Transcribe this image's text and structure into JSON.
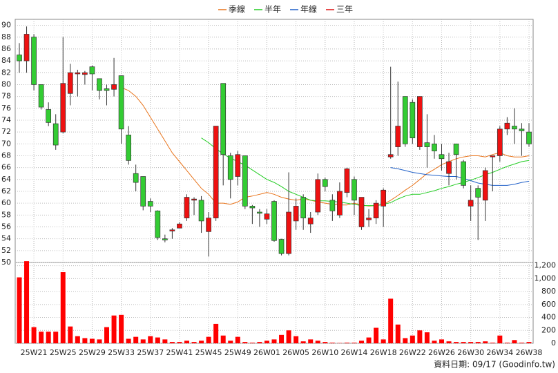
{
  "chart_data": {
    "type": "candlestick",
    "categories": [
      null,
      null,
      "25W21",
      null,
      null,
      null,
      "25W25",
      null,
      null,
      null,
      "25W29",
      null,
      null,
      null,
      "25W33",
      null,
      null,
      null,
      "25W37",
      null,
      null,
      null,
      "25W41",
      null,
      null,
      null,
      "25W45",
      null,
      null,
      null,
      "25W49",
      null,
      null,
      null,
      "26W01",
      null,
      null,
      null,
      "26W05",
      null,
      null,
      null,
      "26W10",
      null,
      null,
      null,
      "26W14",
      null,
      null,
      null,
      "26W18",
      null,
      null,
      null,
      "26W22",
      null,
      null,
      null,
      "26W26",
      null,
      null,
      null,
      "26W30",
      null,
      null,
      null,
      "26W34",
      null,
      null,
      null,
      "26W38"
    ],
    "open": [
      85,
      84,
      88,
      80,
      75.8,
      73.4,
      72,
      78.5,
      81.8,
      81.7,
      83,
      81,
      79.3,
      79.2,
      81.5,
      71.5,
      65,
      64.5,
      60.3,
      58.7,
      54,
      55.3,
      55.8,
      57.5,
      60.5,
      60.5,
      55.2,
      57.5,
      80.2,
      68,
      64.5,
      68,
      59.5,
      58.5,
      57.3,
      60.3,
      53.9,
      51.5,
      57,
      61,
      56.5,
      58.5,
      64,
      60.5,
      58,
      61.8,
      64,
      56,
      57.2,
      57.5,
      59.5,
      67.8,
      69.5,
      78,
      77,
      69.5,
      70.2,
      70,
      68.2,
      65,
      70,
      67,
      59.5,
      62.5,
      60.5,
      67.8,
      68,
      72.5,
      73,
      72.5,
      72
    ],
    "high": [
      87,
      89.8,
      88.5,
      80,
      77,
      75,
      88,
      83.5,
      82.5,
      82.3,
      83.2,
      81,
      80,
      84.5,
      81.5,
      73,
      66.5,
      64.5,
      60.8,
      58.8,
      54.7,
      55.8,
      56.8,
      61.5,
      61,
      61.2,
      58.5,
      73,
      80.2,
      68.5,
      68.8,
      68,
      59.7,
      59,
      59,
      60.5,
      54,
      65.2,
      60.8,
      61.5,
      58.5,
      65,
      64.3,
      61.5,
      63.5,
      66,
      64.5,
      61,
      59,
      60.5,
      62.5,
      83,
      80.5,
      78,
      77.5,
      78,
      75,
      71.5,
      70,
      68.5,
      70,
      67.3,
      63,
      63,
      66,
      68,
      73,
      74.5,
      76,
      73.5,
      73.5
    ],
    "low": [
      82,
      82,
      79,
      75.8,
      73,
      69,
      71.8,
      76.5,
      78,
      80,
      79,
      77.5,
      76.5,
      78,
      70,
      66.5,
      62,
      58.8,
      58.5,
      53.8,
      53.4,
      54,
      55.8,
      57,
      58,
      55,
      51,
      57,
      63,
      60.8,
      63,
      59,
      56.5,
      56,
      56.5,
      53.5,
      51.2,
      51.2,
      55.5,
      55.5,
      55,
      58,
      62,
      57,
      57.5,
      61,
      58,
      55.5,
      56,
      56.5,
      56,
      67.5,
      68,
      69.5,
      70,
      69,
      66,
      67.5,
      65.5,
      63,
      64,
      62.5,
      57,
      53.8,
      57,
      62,
      67,
      71.5,
      70,
      68,
      69.5
    ],
    "close": [
      84,
      88.5,
      80,
      76.2,
      73.6,
      69.8,
      80.2,
      82,
      82,
      82,
      81.8,
      79,
      79,
      80,
      72.5,
      67.2,
      63.5,
      59.5,
      59.5,
      54.2,
      53.8,
      55.5,
      56.5,
      61,
      60.7,
      57,
      57.5,
      73,
      68.2,
      64,
      68.2,
      59.5,
      59.2,
      58.3,
      58.2,
      53.7,
      51.5,
      58.5,
      59.5,
      57.5,
      57.5,
      64,
      62.8,
      58.7,
      62,
      65.8,
      60.5,
      61,
      57.5,
      60,
      62.2,
      68.2,
      73,
      70,
      71,
      78,
      69.5,
      68.8,
      67.5,
      67,
      68.2,
      63,
      60.5,
      61,
      65.5,
      68,
      72.5,
      73.5,
      72.5,
      72.2,
      70
    ],
    "up_color": "#ee1111",
    "down_color": "#33cc33",
    "series": [
      {
        "name": "季線",
        "color": "#e8731a",
        "values": [
          null,
          null,
          null,
          null,
          null,
          null,
          null,
          null,
          null,
          null,
          null,
          null,
          null,
          null,
          79.5,
          79,
          78,
          76.5,
          74.5,
          72.5,
          70.5,
          68.5,
          67,
          65.5,
          64,
          62.5,
          61.5,
          60,
          60,
          59.8,
          60.2,
          61,
          61.2,
          61.5,
          61.8,
          61.5,
          61,
          60.7,
          60.5,
          60.7,
          60.5,
          60.2,
          60,
          59.8,
          59.7,
          59.7,
          60,
          59.7,
          59.5,
          59.6,
          59.8,
          60.5,
          61.3,
          62.2,
          63,
          64,
          65,
          65.7,
          66.5,
          67,
          67.5,
          67.8,
          68,
          68,
          67.8,
          68.2,
          68.5,
          68,
          67.8,
          67.8,
          68
        ]
      },
      {
        "name": "半年",
        "color": "#22cc22",
        "values": [
          null,
          null,
          null,
          null,
          null,
          null,
          null,
          null,
          null,
          null,
          null,
          null,
          null,
          null,
          null,
          null,
          null,
          null,
          null,
          null,
          null,
          null,
          null,
          null,
          null,
          71,
          70.2,
          69.2,
          68.3,
          67.6,
          67,
          66.4,
          65.6,
          64.8,
          64,
          63.5,
          62.8,
          62,
          61.5,
          61,
          60.5,
          60.4,
          60.4,
          60.3,
          60.2,
          60,
          59.8,
          59.6,
          59.6,
          59.6,
          59.8,
          60.1,
          60.7,
          61.2,
          61.5,
          61.5,
          61.8,
          62.1,
          62.5,
          62.8,
          63.2,
          63.5,
          63.9,
          64.3,
          64.8,
          65.2,
          65.7,
          66.2,
          66.6,
          67,
          67.2
        ]
      },
      {
        "name": "年線",
        "color": "#1f5fc8",
        "values": [
          null,
          null,
          null,
          null,
          null,
          null,
          null,
          null,
          null,
          null,
          null,
          null,
          null,
          null,
          null,
          null,
          null,
          null,
          null,
          null,
          null,
          null,
          null,
          null,
          null,
          null,
          null,
          null,
          null,
          null,
          null,
          null,
          null,
          null,
          null,
          null,
          null,
          null,
          null,
          null,
          null,
          null,
          null,
          null,
          null,
          null,
          null,
          null,
          null,
          null,
          null,
          66,
          65.8,
          65.5,
          65.2,
          65,
          64.8,
          64.7,
          64.6,
          64.5,
          64.5,
          64.2,
          63.8,
          63.4,
          63.2,
          63,
          63,
          63,
          63.2,
          63.5,
          63.7
        ]
      },
      {
        "name": "三年",
        "color": "#dd1111",
        "values": [
          null,
          null,
          null,
          null,
          null,
          null,
          null,
          null,
          null,
          null,
          null,
          null,
          null,
          null,
          null,
          null,
          null,
          null,
          null,
          null,
          null,
          null,
          null,
          null,
          null,
          null,
          null,
          null,
          null,
          null,
          null,
          null,
          null,
          null,
          null,
          null,
          null,
          null,
          null,
          null,
          null,
          null,
          null,
          null,
          null,
          null,
          null,
          null,
          null,
          null,
          null,
          null,
          null,
          null,
          null,
          null,
          null,
          null,
          null,
          null,
          null,
          null,
          null,
          null,
          null,
          null,
          null,
          null,
          null,
          null,
          null
        ]
      }
    ],
    "ylim": [
      50,
      91
    ],
    "yticks": [
      50,
      52,
      54,
      56,
      58,
      60,
      62,
      64,
      66,
      68,
      70,
      72,
      74,
      76,
      78,
      80,
      82,
      84,
      86,
      88,
      90
    ],
    "grid": true,
    "volume": {
      "type": "bar",
      "color": "#ff0000",
      "values": [
        1020,
        1270,
        250,
        180,
        180,
        180,
        1100,
        260,
        110,
        80,
        70,
        60,
        250,
        430,
        440,
        70,
        100,
        60,
        110,
        90,
        60,
        20,
        20,
        40,
        20,
        40,
        100,
        300,
        120,
        40,
        100,
        20,
        10,
        20,
        40,
        60,
        130,
        200,
        110,
        30,
        60,
        40,
        20,
        10,
        5,
        10,
        10,
        40,
        90,
        240,
        60,
        690,
        290,
        80,
        120,
        200,
        170,
        40,
        60,
        30,
        20,
        20,
        20,
        20,
        30,
        10,
        120,
        10,
        50,
        10,
        20
      ],
      "ylim": [
        0,
        1250
      ],
      "yticks": [
        0,
        200,
        400,
        600,
        800,
        {
          "value": 1000,
          "label": "1,000"
        },
        {
          "value": 1200,
          "label": "1,200"
        }
      ]
    },
    "source": "資料日期: 09/17  (Goodinfo.tw)"
  }
}
